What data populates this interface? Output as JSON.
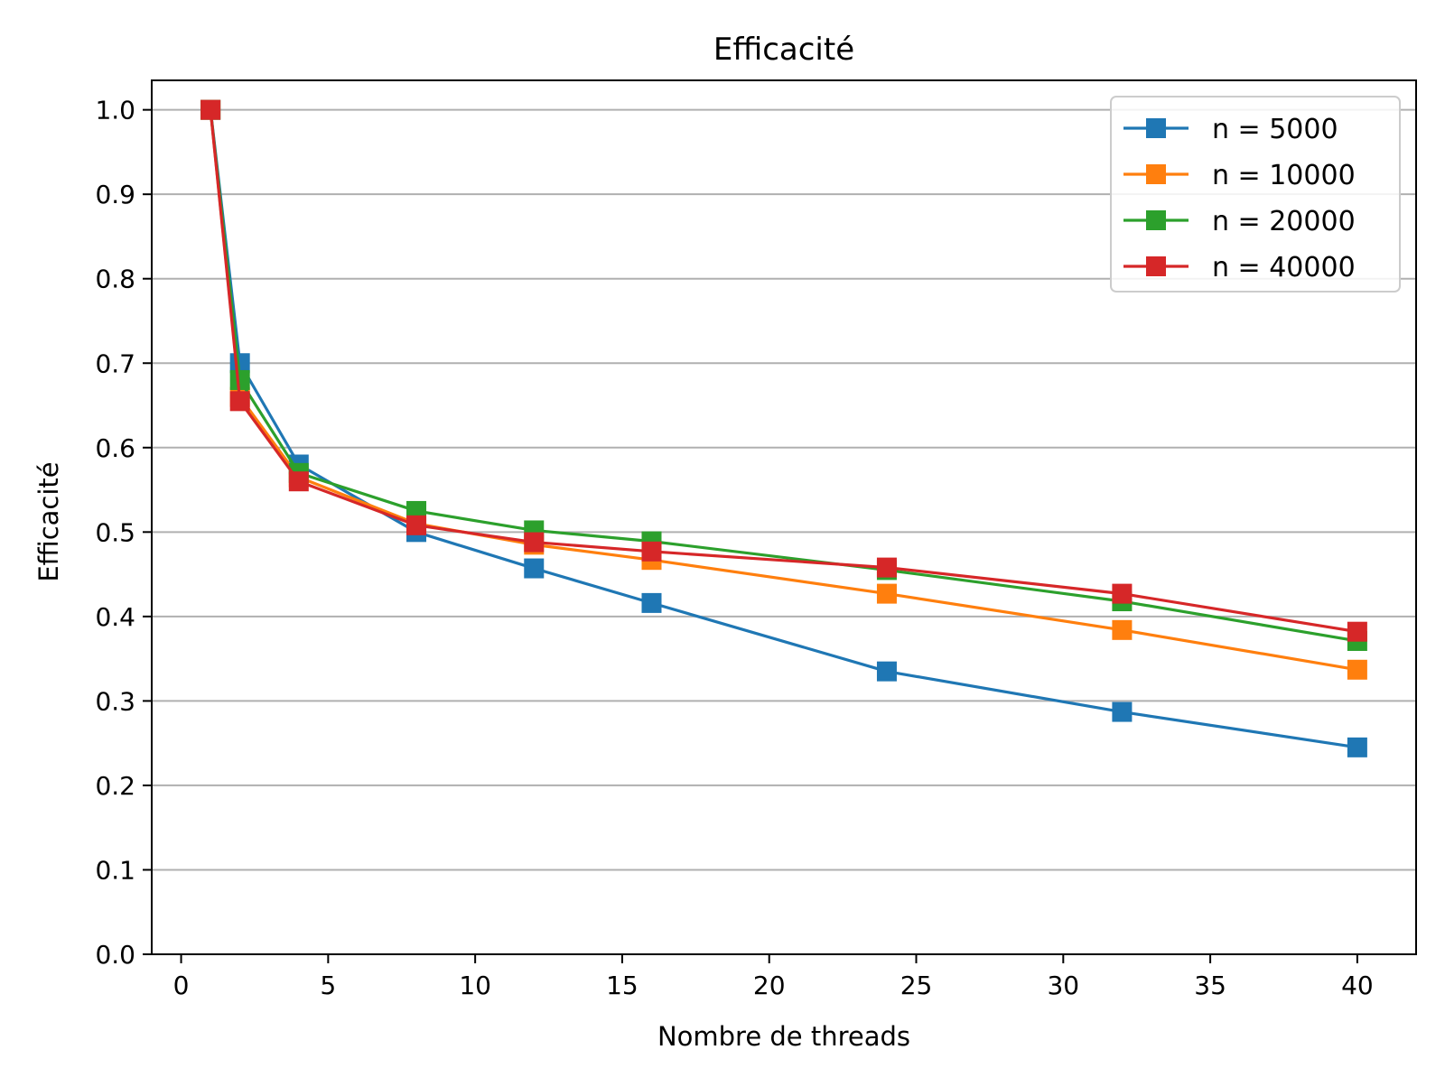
{
  "chart_data": {
    "type": "line",
    "title": "Efficacité",
    "xlabel": "Nombre de threads",
    "ylabel": "Efficacité",
    "x": [
      1,
      2,
      4,
      8,
      12,
      16,
      24,
      32,
      40
    ],
    "xlim": [
      -1,
      42
    ],
    "ylim": [
      0.0,
      1.0
    ],
    "xticks": [
      "0",
      "5",
      "10",
      "15",
      "20",
      "25",
      "30",
      "35",
      "40"
    ],
    "yticks": [
      "0.0",
      "0.1",
      "0.2",
      "0.3",
      "0.4",
      "0.5",
      "0.6",
      "0.7",
      "0.8",
      "0.9",
      "1.0"
    ],
    "grid": "horizontal",
    "legend_position": "top-right",
    "marker": "square",
    "series": [
      {
        "name": "n = 5000",
        "color": "#1f77b4",
        "values": [
          1.0,
          0.7,
          0.58,
          0.5,
          0.457,
          0.416,
          0.335,
          0.287,
          0.245
        ]
      },
      {
        "name": "n = 10000",
        "color": "#ff7f0e",
        "values": [
          1.0,
          0.66,
          0.565,
          0.51,
          0.485,
          0.467,
          0.427,
          0.384,
          0.337
        ]
      },
      {
        "name": "n = 20000",
        "color": "#2ca02c",
        "values": [
          1.0,
          0.68,
          0.57,
          0.525,
          0.502,
          0.489,
          0.455,
          0.418,
          0.371
        ]
      },
      {
        "name": "n = 40000",
        "color": "#d62728",
        "values": [
          1.0,
          0.655,
          0.56,
          0.508,
          0.488,
          0.477,
          0.458,
          0.427,
          0.382
        ]
      }
    ]
  }
}
